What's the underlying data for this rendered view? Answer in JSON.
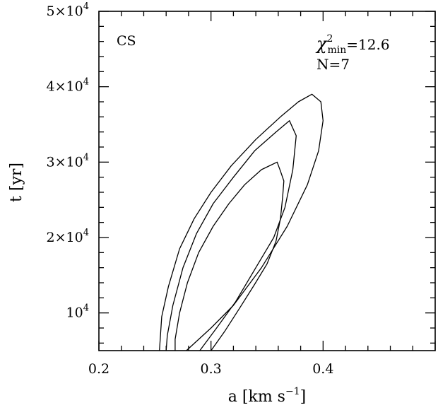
{
  "chart_data": {
    "type": "contour",
    "xlabel": "a [km s",
    "xlabel_sup": "−1",
    "xlabel_close": "]",
    "ylabel": "t [yr]",
    "xlim": [
      0.2,
      0.5
    ],
    "ylim": [
      5000,
      50000
    ],
    "x_ticks": [
      {
        "value": 0.2,
        "label": "0.2"
      },
      {
        "value": 0.3,
        "label": "0.3"
      },
      {
        "value": 0.4,
        "label": "0.4"
      }
    ],
    "y_ticks": [
      {
        "value": 10000,
        "mantissa": "",
        "base": "10",
        "exp": "4"
      },
      {
        "value": 20000,
        "mantissa": "2×",
        "base": "10",
        "exp": "4"
      },
      {
        "value": 30000,
        "mantissa": "3×",
        "base": "10",
        "exp": "4"
      },
      {
        "value": 40000,
        "mantissa": "4×",
        "base": "10",
        "exp": "4"
      },
      {
        "value": 50000,
        "mantissa": "5×",
        "base": "10",
        "exp": "4"
      }
    ],
    "annotations": {
      "species": "CS",
      "chi_symbol": "χ",
      "chi_sup": "2",
      "chi_sub": "min",
      "chi_value": "=12.6",
      "n_label": "N=7"
    },
    "grid": false,
    "line_color": "#000000",
    "contours": [
      {
        "level": "inner",
        "points": [
          [
            0.3,
            5000
          ],
          [
            0.312,
            7500
          ],
          [
            0.325,
            10500
          ],
          [
            0.339,
            13800
          ],
          [
            0.35,
            16500
          ],
          [
            0.358,
            19500
          ],
          [
            0.362,
            22500
          ],
          [
            0.364,
            25500
          ],
          [
            0.365,
            27500
          ],
          [
            0.362,
            28800
          ],
          [
            0.359,
            30000
          ],
          [
            0.345,
            29000
          ],
          [
            0.33,
            27000
          ],
          [
            0.316,
            24500
          ],
          [
            0.302,
            21500
          ],
          [
            0.289,
            18000
          ],
          [
            0.279,
            14000
          ],
          [
            0.272,
            10000
          ],
          [
            0.268,
            6500
          ],
          [
            0.268,
            5000
          ]
        ]
      },
      {
        "level": "middle",
        "points": [
          [
            0.29,
            5000
          ],
          [
            0.305,
            8000
          ],
          [
            0.322,
            11500
          ],
          [
            0.34,
            16000
          ],
          [
            0.356,
            20000
          ],
          [
            0.366,
            24000
          ],
          [
            0.373,
            29000
          ],
          [
            0.376,
            33500
          ],
          [
            0.37,
            35500
          ],
          [
            0.358,
            34000
          ],
          [
            0.339,
            31500
          ],
          [
            0.32,
            28000
          ],
          [
            0.302,
            24500
          ],
          [
            0.287,
            20500
          ],
          [
            0.275,
            16000
          ],
          [
            0.266,
            11000
          ],
          [
            0.261,
            7000
          ],
          [
            0.26,
            5000
          ]
        ]
      },
      {
        "level": "outer",
        "points": [
          [
            0.278,
            5000
          ],
          [
            0.3,
            8000
          ],
          [
            0.32,
            11000
          ],
          [
            0.345,
            16000
          ],
          [
            0.368,
            21500
          ],
          [
            0.386,
            27000
          ],
          [
            0.396,
            31500
          ],
          [
            0.4,
            35500
          ],
          [
            0.398,
            38000
          ],
          [
            0.39,
            39000
          ],
          [
            0.378,
            38000
          ],
          [
            0.362,
            36000
          ],
          [
            0.34,
            33000
          ],
          [
            0.318,
            29500
          ],
          [
            0.3,
            26000
          ],
          [
            0.285,
            22500
          ],
          [
            0.272,
            18500
          ],
          [
            0.262,
            13500
          ],
          [
            0.256,
            9500
          ],
          [
            0.254,
            5000
          ]
        ]
      }
    ]
  }
}
